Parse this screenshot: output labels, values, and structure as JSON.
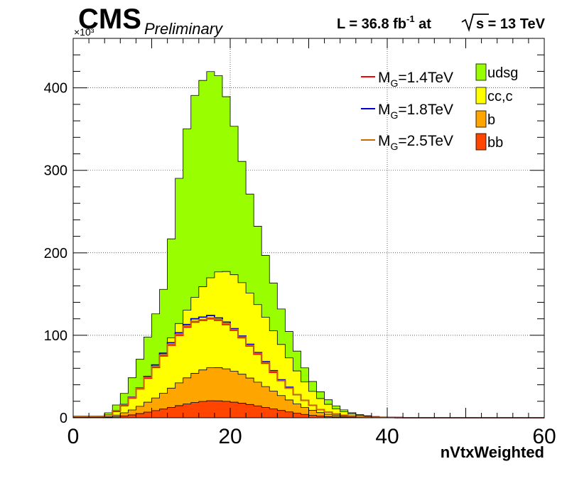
{
  "header": {
    "experiment": "CMS",
    "status": "Preliminary",
    "lumi_prefix": "L = 36.8 fb",
    "lumi_exp": "-1",
    "lumi_mid": " at  ",
    "energy": "s = 13 TeV"
  },
  "colors": {
    "udsg": "#99ff00",
    "cc_c": "#ffff00",
    "b": "#ffa500",
    "bb": "#ff4500",
    "mg14": "#ff0000",
    "mg18": "#0000cc",
    "mg25": "#cc6600"
  },
  "chart_data": {
    "type": "area",
    "title": "",
    "xlabel": "nVtxWeighted",
    "ylabel": "",
    "y_multiplier": "×10³",
    "xlim": [
      0,
      60
    ],
    "ylim": [
      0,
      460
    ],
    "x_ticks": [
      0,
      20,
      40,
      60
    ],
    "y_ticks": [
      0,
      100,
      200,
      300,
      400
    ],
    "grid": true,
    "legend_position": "top-right",
    "bin_width": 1,
    "stacked": true,
    "x": [
      0,
      1,
      2,
      3,
      4,
      5,
      6,
      7,
      8,
      9,
      10,
      11,
      12,
      13,
      14,
      15,
      16,
      17,
      18,
      19,
      20,
      21,
      22,
      23,
      24,
      25,
      26,
      27,
      28,
      29,
      30,
      31,
      32,
      33,
      34,
      35,
      36,
      37,
      38,
      39,
      40,
      41,
      42,
      43,
      44,
      45,
      46,
      47,
      48,
      49,
      50,
      51,
      52,
      53,
      54,
      55,
      56,
      57,
      58,
      59
    ],
    "series": [
      {
        "name": "bb",
        "values": [
          0.2,
          0.2,
          0.2,
          0.2,
          0.5,
          1.2,
          2.2,
          3.5,
          5.1,
          6.9,
          8.7,
          10.6,
          12.6,
          14.7,
          16.7,
          18.5,
          19.8,
          20.6,
          20.5,
          19.9,
          18.9,
          17.7,
          16.1,
          14.4,
          12.6,
          10.8,
          8.9,
          7.1,
          5.5,
          4.1,
          2.9,
          2.0,
          1.4,
          0.9,
          0.6,
          0.4,
          0.3,
          0.2,
          0.1,
          0.1,
          0.1,
          0.1,
          0,
          0,
          0,
          0,
          0,
          0,
          0,
          0,
          0,
          0,
          0,
          0,
          0,
          0,
          0,
          0,
          0,
          0
        ]
      },
      {
        "name": "b",
        "values": [
          0.3,
          0.3,
          0.3,
          0.3,
          0.8,
          2,
          3.8,
          6,
          8.8,
          12,
          15.3,
          19.1,
          23.3,
          27.6,
          31.7,
          35.4,
          38.2,
          40.1,
          40.3,
          39.4,
          37.5,
          35.1,
          32.1,
          28.8,
          25.2,
          21.6,
          18,
          14.5,
          11.3,
          8.4,
          6.1,
          4.3,
          2.9,
          1.9,
          1.3,
          0.8,
          0.5,
          0.3,
          0.2,
          0.1,
          0.1,
          0.1,
          0,
          0,
          0,
          0,
          0,
          0,
          0,
          0,
          0,
          0,
          0,
          0,
          0,
          0,
          0,
          0,
          0,
          0
        ]
      },
      {
        "name": "cc,c",
        "values": [
          0.4,
          0.4,
          0.4,
          0.5,
          1.7,
          4.3,
          8.5,
          14,
          21,
          29,
          38,
          49,
          61,
          72,
          82,
          92,
          101,
          109,
          116,
          118,
          117,
          111,
          103,
          94,
          84,
          73,
          62,
          51,
          40,
          31,
          23,
          17,
          12,
          8,
          5.4,
          3.5,
          2.2,
          1.4,
          0.9,
          0.6,
          0.4,
          0.3,
          0.2,
          0.2,
          0.2,
          0.1,
          0.1,
          0.1,
          0.1,
          0.1,
          0.1,
          0.1,
          0.1,
          0.1,
          0.1,
          0.1,
          0.1,
          0.1,
          0.1,
          0.1
        ]
      },
      {
        "name": "udsg",
        "values": [
          0.6,
          0.6,
          0.6,
          1,
          3,
          8,
          15,
          25,
          36,
          50,
          64,
          77,
          120,
          176,
          220,
          245,
          250,
          250,
          238,
          212,
          180,
          147,
          120,
          95,
          75,
          58,
          43,
          32,
          24,
          17,
          12,
          8.2,
          5.5,
          3.6,
          2.3,
          1.5,
          0.9,
          0.6,
          0.4,
          0.3,
          0.3,
          0.2,
          0.2,
          0.1,
          0.1,
          0.1,
          0.1,
          0.1,
          0.1,
          0.1,
          0.1,
          0.1,
          0.1,
          0.1,
          0.1,
          0.1,
          0.1,
          0.1,
          0.1,
          0.1
        ]
      }
    ],
    "overlays": [
      {
        "name": "M_G=1.4TeV",
        "values": [
          1.6,
          1.6,
          1.6,
          1.6,
          3.5,
          8.5,
          15.5,
          24,
          35,
          48,
          61,
          75,
          88,
          100,
          110,
          116,
          118,
          120,
          118,
          113,
          106,
          97,
          87,
          77,
          66,
          55,
          45,
          36,
          28,
          21,
          15,
          10,
          7,
          4.5,
          3,
          2,
          1.3,
          0.8,
          0.6,
          0.4,
          0.3,
          0.2,
          0.1,
          0.1,
          0.1,
          0.1,
          0.1,
          0.1,
          0.1,
          0.1,
          0.1,
          0.1,
          0.1,
          0.1,
          0.1,
          0.1,
          0.1,
          0.1,
          0.1,
          0.1
        ]
      },
      {
        "name": "M_G=1.8TeV",
        "values": [
          1.6,
          1.6,
          1.6,
          1.6,
          3.5,
          8.5,
          16,
          25,
          36,
          50,
          64,
          78,
          91,
          103,
          113,
          120,
          122,
          124,
          121,
          116,
          108,
          99,
          89,
          79,
          68,
          57,
          46,
          37,
          28,
          21,
          15,
          10,
          7,
          4.5,
          3,
          2,
          1.3,
          0.8,
          0.6,
          0.4,
          0.3,
          0.2,
          0.1,
          0.1,
          0.1,
          0.1,
          0.1,
          0.1,
          0.1,
          0.1,
          0.1,
          0.1,
          0.1,
          0.1,
          0.1,
          0.1,
          0.1,
          0.1,
          0.1,
          0.1
        ]
      },
      {
        "name": "M_G=2.5TeV",
        "values": [
          1.6,
          1.6,
          1.6,
          1.6,
          3.5,
          8.5,
          15.5,
          24.5,
          35.5,
          49,
          62,
          76,
          89,
          101,
          111,
          117,
          119,
          121,
          119,
          114,
          107,
          98,
          88,
          78,
          67,
          56,
          45,
          36,
          28,
          21,
          15,
          10,
          7,
          4.5,
          3,
          2,
          1.3,
          0.8,
          0.6,
          0.4,
          0.3,
          0.2,
          0.1,
          0.1,
          0.1,
          0.1,
          0.1,
          0.1,
          0.1,
          0.1,
          0.1,
          0.1,
          0.1,
          0.1,
          0.1,
          0.1,
          0.1,
          0.1,
          0.1,
          0.1
        ]
      }
    ]
  },
  "legend": {
    "lines": [
      {
        "pre": "M",
        "sub": "G",
        "post": "=1.4TeV",
        "color_key": "mg14"
      },
      {
        "pre": "M",
        "sub": "G",
        "post": "=1.8TeV",
        "color_key": "mg18"
      },
      {
        "pre": "M",
        "sub": "G",
        "post": "=2.5TeV",
        "color_key": "mg25"
      }
    ],
    "fills": [
      {
        "label": "udsg",
        "color_key": "udsg"
      },
      {
        "label": "cc,c",
        "color_key": "cc_c"
      },
      {
        "label": "b",
        "color_key": "b"
      },
      {
        "label": "bb",
        "color_key": "bb"
      }
    ]
  }
}
